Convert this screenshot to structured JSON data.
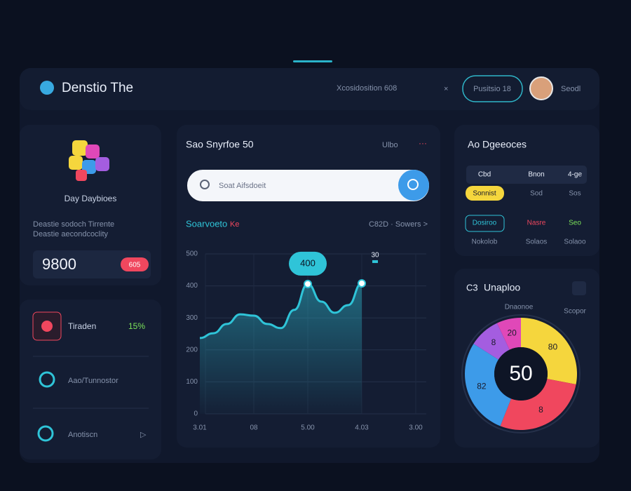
{
  "header": {
    "brand": "Denstio The",
    "info": "Xcosidosition 608",
    "close": "×",
    "button": "Pusitsio 18",
    "user": "Seodl"
  },
  "profile_card": {
    "title": "Day Daybioes",
    "lines": [
      "Deastie sodoch Tirrente",
      "Deastie aecondcoclity"
    ],
    "amount": "9800",
    "badge": "605"
  },
  "menu_card": {
    "items": [
      {
        "label": "Tiraden",
        "value": "15%"
      },
      {
        "label": "Aao/Tunnostor"
      },
      {
        "label": "Anotiscn",
        "arrow": "▷"
      }
    ]
  },
  "chart_card": {
    "title": "Sao Snyrfoe 50",
    "action": "Ulbo",
    "more": "···",
    "search_placeholder": "Soat Aifsdoeit",
    "subtitle": "Soarvoeto",
    "subtitle_tag": "Ke",
    "filter": "C82D · Sowers >",
    "chart_data": {
      "type": "line",
      "categories": [
        "3.01",
        null,
        null,
        null,
        "08",
        null,
        null,
        null,
        "5.00",
        null,
        null,
        null,
        "4.03",
        null,
        null,
        null,
        "3.00"
      ],
      "series": [
        {
          "name": "Soarvoeto",
          "color": "#2fc4d8",
          "values": [
            237,
            252,
            281,
            311,
            307,
            281,
            268,
            325,
            406,
            351,
            316,
            340,
            408,
            null,
            null,
            null,
            null
          ]
        }
      ],
      "ylim": [
        0,
        500
      ],
      "yticks": [
        0,
        100,
        200,
        300,
        400,
        500
      ],
      "grid": true,
      "annotations": [
        "400",
        "30"
      ]
    }
  },
  "devices_card": {
    "title": "Ao Dgeeoces",
    "rows": [
      [
        "Cbd",
        "Bnon",
        "4-ge"
      ],
      [
        "Sonnist",
        "Sod",
        "Sos"
      ],
      [
        "Dosiroo",
        "Nasre",
        "Seo"
      ],
      [
        "Nokolob",
        "Solaos",
        "Solaoo"
      ]
    ]
  },
  "donut_card": {
    "icon": "C3",
    "title": "Unaploo",
    "caption": "Dnaonoe",
    "side": "Scopor",
    "chart_data": {
      "type": "donut",
      "center": "50",
      "series": [
        {
          "name": "Yellow",
          "color": "#f5d63d",
          "value": 28
        },
        {
          "name": "Red",
          "color": "#f0475e",
          "value": 28
        },
        {
          "name": "Blue",
          "color": "#3d9be9",
          "value": 28
        },
        {
          "name": "Purple",
          "color": "#a45de0",
          "value": 9
        },
        {
          "name": "Pink",
          "color": "#e048b8",
          "value": 7
        }
      ],
      "segment_labels": [
        "80",
        "8",
        "82",
        "8",
        "20"
      ]
    }
  }
}
